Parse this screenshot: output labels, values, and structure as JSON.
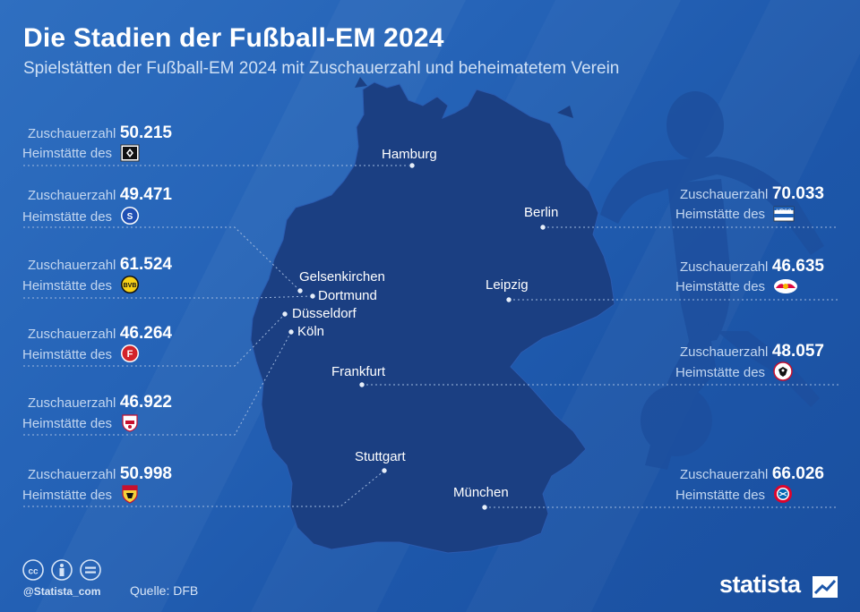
{
  "header": {
    "title": "Die Stadien der Fußball-EM 2024",
    "subtitle": "Spielstätten der Fußball-EM 2024 mit Zuschauerzahl und beheimatetem Verein"
  },
  "labels": {
    "capacity": "Zuschauerzahl",
    "home": "Heimstätte des"
  },
  "stadiums": [
    {
      "city": "Hamburg",
      "capacity": "50.215",
      "club_icon": "hsv-crest-icon",
      "side": "left"
    },
    {
      "city": "Gelsenkirchen",
      "capacity": "49.471",
      "club_icon": "schalke-crest-icon",
      "side": "left"
    },
    {
      "city": "Dortmund",
      "capacity": "61.524",
      "club_icon": "bvb-crest-icon",
      "side": "left"
    },
    {
      "city": "Düsseldorf",
      "capacity": "46.264",
      "club_icon": "fortuna-crest-icon",
      "side": "left"
    },
    {
      "city": "Köln",
      "capacity": "46.922",
      "club_icon": "koeln-crest-icon",
      "side": "left"
    },
    {
      "city": "Stuttgart",
      "capacity": "50.998",
      "club_icon": "vfb-crest-icon",
      "side": "left"
    },
    {
      "city": "Berlin",
      "capacity": "70.033",
      "club_icon": "hertha-crest-icon",
      "side": "right"
    },
    {
      "city": "Leipzig",
      "capacity": "46.635",
      "club_icon": "rbl-crest-icon",
      "side": "right"
    },
    {
      "city": "Frankfurt",
      "capacity": "48.057",
      "club_icon": "eintracht-crest-icon",
      "side": "right"
    },
    {
      "city": "München",
      "capacity": "66.026",
      "club_icon": "fcb-crest-icon",
      "side": "right"
    }
  ],
  "footer": {
    "handle": "@Statista_com",
    "source": "Quelle: DFB",
    "brand": "statista",
    "license_icons": [
      "cc-icon",
      "by-icon",
      "nd-icon"
    ]
  },
  "colors": {
    "background": "#2563b7",
    "map_fill": "#1b3f82",
    "silhouette": "#1d4f9e",
    "text_muted": "#c2d6f0"
  }
}
